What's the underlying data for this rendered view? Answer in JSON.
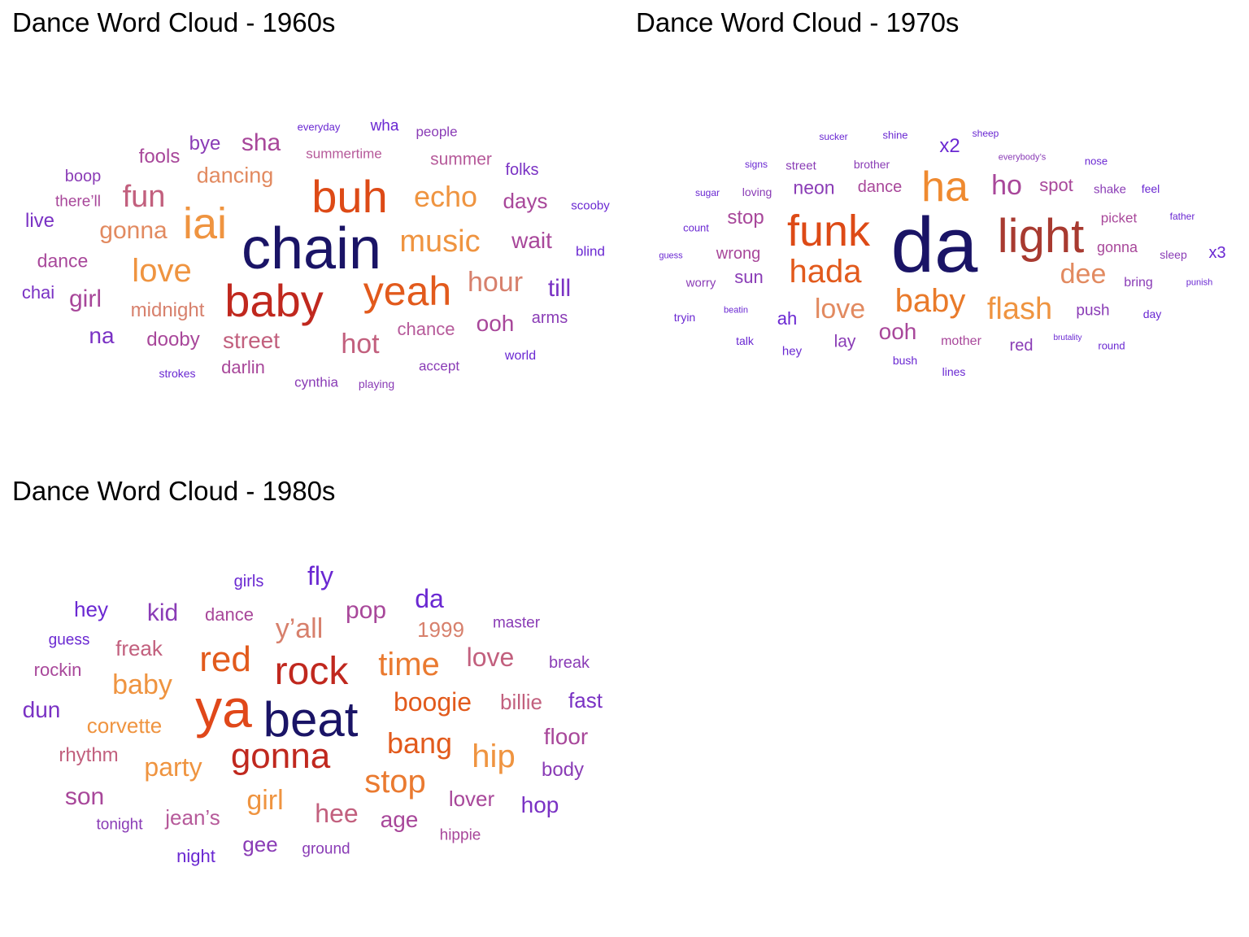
{
  "clouds": [
    {
      "title": "Dance Word Cloud - 1960s",
      "words": [
        {
          "text": "chain",
          "color": "#1a1466"
        },
        {
          "text": "baby",
          "color": "#c0281e"
        },
        {
          "text": "buh",
          "color": "#dd4a16"
        },
        {
          "text": "yeah",
          "color": "#e25a1c"
        },
        {
          "text": "iai",
          "color": "#ef9440"
        },
        {
          "text": "love",
          "color": "#ef9440"
        },
        {
          "text": "music",
          "color": "#ef9440"
        },
        {
          "text": "echo",
          "color": "#ef9440"
        },
        {
          "text": "fun",
          "color": "#c2607e"
        },
        {
          "text": "hour",
          "color": "#d7806c"
        },
        {
          "text": "hot",
          "color": "#c2607e"
        },
        {
          "text": "sha",
          "color": "#a8479a"
        },
        {
          "text": "wait",
          "color": "#a8479a"
        },
        {
          "text": "dancing",
          "color": "#e28a60"
        },
        {
          "text": "gonna",
          "color": "#e28a60"
        },
        {
          "text": "street",
          "color": "#c2607e"
        },
        {
          "text": "days",
          "color": "#a8479a"
        },
        {
          "text": "ooh",
          "color": "#a8479a"
        },
        {
          "text": "till",
          "color": "#7a32c4"
        },
        {
          "text": "girl",
          "color": "#a8479a"
        },
        {
          "text": "midnight",
          "color": "#d7806c"
        },
        {
          "text": "summer",
          "color": "#b65a9a"
        },
        {
          "text": "chance",
          "color": "#b65a9a"
        },
        {
          "text": "dooby",
          "color": "#a8479a"
        },
        {
          "text": "fools",
          "color": "#a8479a"
        },
        {
          "text": "bye",
          "color": "#8a3cb6"
        },
        {
          "text": "dance",
          "color": "#a8479a"
        },
        {
          "text": "na",
          "color": "#7a32c4"
        },
        {
          "text": "darlin",
          "color": "#a8479a"
        },
        {
          "text": "summertime",
          "color": "#b65a9a"
        },
        {
          "text": "folks",
          "color": "#7a32c4"
        },
        {
          "text": "arms",
          "color": "#8a3cb6"
        },
        {
          "text": "boop",
          "color": "#8a3cb6"
        },
        {
          "text": "there’ll",
          "color": "#a8479a"
        },
        {
          "text": "live",
          "color": "#7a32c4"
        },
        {
          "text": "chai",
          "color": "#7a32c4"
        },
        {
          "text": "wha",
          "color": "#6a28d2"
        },
        {
          "text": "people",
          "color": "#8a3cb6"
        },
        {
          "text": "accept",
          "color": "#8a3cb6"
        },
        {
          "text": "cynthia",
          "color": "#8a3cb6"
        },
        {
          "text": "blind",
          "color": "#6a28d2"
        },
        {
          "text": "world",
          "color": "#6a28d2"
        },
        {
          "text": "scooby",
          "color": "#6a28d2"
        },
        {
          "text": "playing",
          "color": "#8a3cb6"
        },
        {
          "text": "strokes",
          "color": "#6a28d2"
        },
        {
          "text": "everyday",
          "color": "#6a28d2"
        }
      ]
    },
    {
      "title": "Dance Word Cloud - 1970s",
      "words": [
        {
          "text": "da",
          "color": "#1a1466"
        },
        {
          "text": "light",
          "color": "#a83a30"
        },
        {
          "text": "funk",
          "color": "#dd4a16"
        },
        {
          "text": "hada",
          "color": "#e25a1c"
        },
        {
          "text": "ha",
          "color": "#ef8a30"
        },
        {
          "text": "baby",
          "color": "#e97a2a"
        },
        {
          "text": "flash",
          "color": "#ef9440"
        },
        {
          "text": "love",
          "color": "#e28a60"
        },
        {
          "text": "dee",
          "color": "#e28a60"
        },
        {
          "text": "ho",
          "color": "#a8479a"
        },
        {
          "text": "ooh",
          "color": "#a8479a"
        },
        {
          "text": "stop",
          "color": "#a8479a"
        },
        {
          "text": "neon",
          "color": "#8a3cb6"
        },
        {
          "text": "dance",
          "color": "#a8479a"
        },
        {
          "text": "spot",
          "color": "#a8479a"
        },
        {
          "text": "wrong",
          "color": "#a8479a"
        },
        {
          "text": "sun",
          "color": "#8a3cb6"
        },
        {
          "text": "lay",
          "color": "#8a3cb6"
        },
        {
          "text": "x2",
          "color": "#6a28d2"
        },
        {
          "text": "ah",
          "color": "#6a28d2"
        },
        {
          "text": "push",
          "color": "#8a3cb6"
        },
        {
          "text": "red",
          "color": "#8a3cb6"
        },
        {
          "text": "picket",
          "color": "#a8479a"
        },
        {
          "text": "gonna",
          "color": "#a8479a"
        },
        {
          "text": "x3",
          "color": "#6a28d2"
        },
        {
          "text": "mother",
          "color": "#a8479a"
        },
        {
          "text": "street",
          "color": "#8a3cb6"
        },
        {
          "text": "brother",
          "color": "#8a3cb6"
        },
        {
          "text": "shake",
          "color": "#8a3cb6"
        },
        {
          "text": "feel",
          "color": "#6a28d2"
        },
        {
          "text": "bring",
          "color": "#8a3cb6"
        },
        {
          "text": "sleep",
          "color": "#8a3cb6"
        },
        {
          "text": "day",
          "color": "#6a28d2"
        },
        {
          "text": "loving",
          "color": "#8a3cb6"
        },
        {
          "text": "worry",
          "color": "#8a3cb6"
        },
        {
          "text": "hey",
          "color": "#6a28d2"
        },
        {
          "text": "talk",
          "color": "#6a28d2"
        },
        {
          "text": "tryin",
          "color": "#6a28d2"
        },
        {
          "text": "lines",
          "color": "#6a28d2"
        },
        {
          "text": "bush",
          "color": "#6a28d2"
        },
        {
          "text": "round",
          "color": "#6a28d2"
        },
        {
          "text": "nose",
          "color": "#6a28d2"
        },
        {
          "text": "count",
          "color": "#6a28d2"
        },
        {
          "text": "sugar",
          "color": "#6a28d2"
        },
        {
          "text": "signs",
          "color": "#6a28d2"
        },
        {
          "text": "sucker",
          "color": "#6a28d2"
        },
        {
          "text": "shine",
          "color": "#6a28d2"
        },
        {
          "text": "sheep",
          "color": "#6a28d2"
        },
        {
          "text": "everybody’s",
          "color": "#8a3cb6"
        },
        {
          "text": "father",
          "color": "#6a28d2"
        },
        {
          "text": "guess",
          "color": "#6a28d2"
        },
        {
          "text": "beatin",
          "color": "#6a28d2"
        },
        {
          "text": "brutality",
          "color": "#6a28d2"
        },
        {
          "text": "punish",
          "color": "#6a28d2"
        }
      ]
    },
    {
      "title": "Dance Word Cloud - 1980s",
      "words": [
        {
          "text": "beat",
          "color": "#1a1466"
        },
        {
          "text": "ya",
          "color": "#e0481a"
        },
        {
          "text": "rock",
          "color": "#c0281e"
        },
        {
          "text": "gonna",
          "color": "#c0281e"
        },
        {
          "text": "red",
          "color": "#e25a1c"
        },
        {
          "text": "time",
          "color": "#ea7a30"
        },
        {
          "text": "stop",
          "color": "#ea7a30"
        },
        {
          "text": "bang",
          "color": "#e25a1c"
        },
        {
          "text": "boogie",
          "color": "#e25a1c"
        },
        {
          "text": "hip",
          "color": "#ef9440"
        },
        {
          "text": "baby",
          "color": "#ef9440"
        },
        {
          "text": "party",
          "color": "#ef9440"
        },
        {
          "text": "girl",
          "color": "#ef9440"
        },
        {
          "text": "y’all",
          "color": "#d7806c"
        },
        {
          "text": "love",
          "color": "#c2607e"
        },
        {
          "text": "hee",
          "color": "#c2607e"
        },
        {
          "text": "da",
          "color": "#6a28d2"
        },
        {
          "text": "pop",
          "color": "#a8479a"
        },
        {
          "text": "kid",
          "color": "#8a3cb6"
        },
        {
          "text": "fly",
          "color": "#6a28d2"
        },
        {
          "text": "corvette",
          "color": "#ef9440"
        },
        {
          "text": "freak",
          "color": "#c2607e"
        },
        {
          "text": "billie",
          "color": "#c2607e"
        },
        {
          "text": "1999",
          "color": "#d7806c"
        },
        {
          "text": "lover",
          "color": "#a8479a"
        },
        {
          "text": "floor",
          "color": "#a8479a"
        },
        {
          "text": "fast",
          "color": "#7a32c4"
        },
        {
          "text": "son",
          "color": "#a8479a"
        },
        {
          "text": "age",
          "color": "#a8479a"
        },
        {
          "text": "hop",
          "color": "#7a32c4"
        },
        {
          "text": "dun",
          "color": "#7a32c4"
        },
        {
          "text": "hey",
          "color": "#6a28d2"
        },
        {
          "text": "body",
          "color": "#8a3cb6"
        },
        {
          "text": "rhythm",
          "color": "#c2607e"
        },
        {
          "text": "jean’s",
          "color": "#b65a9a"
        },
        {
          "text": "gee",
          "color": "#8a3cb6"
        },
        {
          "text": "dance",
          "color": "#a8479a"
        },
        {
          "text": "girls",
          "color": "#6a28d2"
        },
        {
          "text": "rockin",
          "color": "#a8479a"
        },
        {
          "text": "break",
          "color": "#8a3cb6"
        },
        {
          "text": "master",
          "color": "#8a3cb6"
        },
        {
          "text": "night",
          "color": "#6a28d2"
        },
        {
          "text": "hippie",
          "color": "#a8479a"
        },
        {
          "text": "ground",
          "color": "#8a3cb6"
        },
        {
          "text": "tonight",
          "color": "#8a3cb6"
        },
        {
          "text": "guess",
          "color": "#6a28d2"
        }
      ]
    }
  ]
}
